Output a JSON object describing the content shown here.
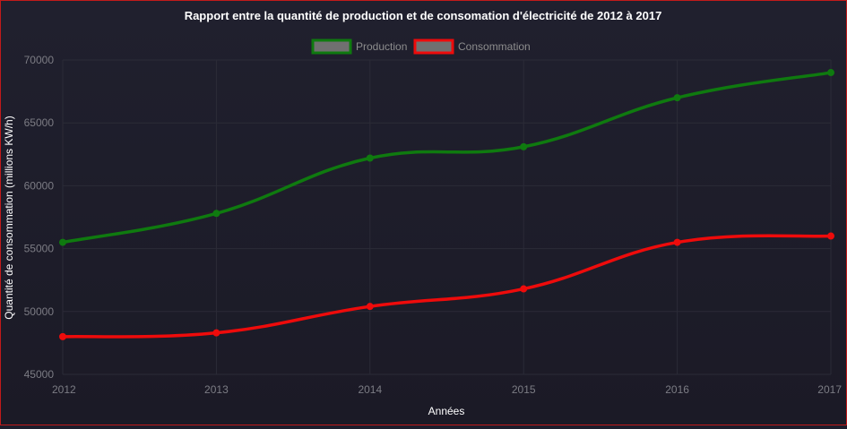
{
  "chart_data": {
    "type": "line",
    "title": "Rapport entre la quantité de production et de consomation d'électricité de 2012 à 2017",
    "xlabel": "Années",
    "ylabel": "Quantité de consommation (millions KW/h)",
    "x": [
      "2012",
      "2013",
      "2014",
      "2015",
      "2016",
      "2017"
    ],
    "ylim": [
      45000,
      70000
    ],
    "yticks": [
      "45000",
      "50000",
      "55000",
      "60000",
      "65000",
      "70000"
    ],
    "grid": true,
    "legend_position": "top",
    "series": [
      {
        "name": "Production",
        "color": "#0f7a0f",
        "values": [
          55500,
          57800,
          62200,
          63100,
          67000,
          69000
        ]
      },
      {
        "name": "Consommation",
        "color": "#ee0b0b",
        "values": [
          48000,
          48300,
          50400,
          51800,
          55500,
          56000
        ]
      }
    ]
  }
}
